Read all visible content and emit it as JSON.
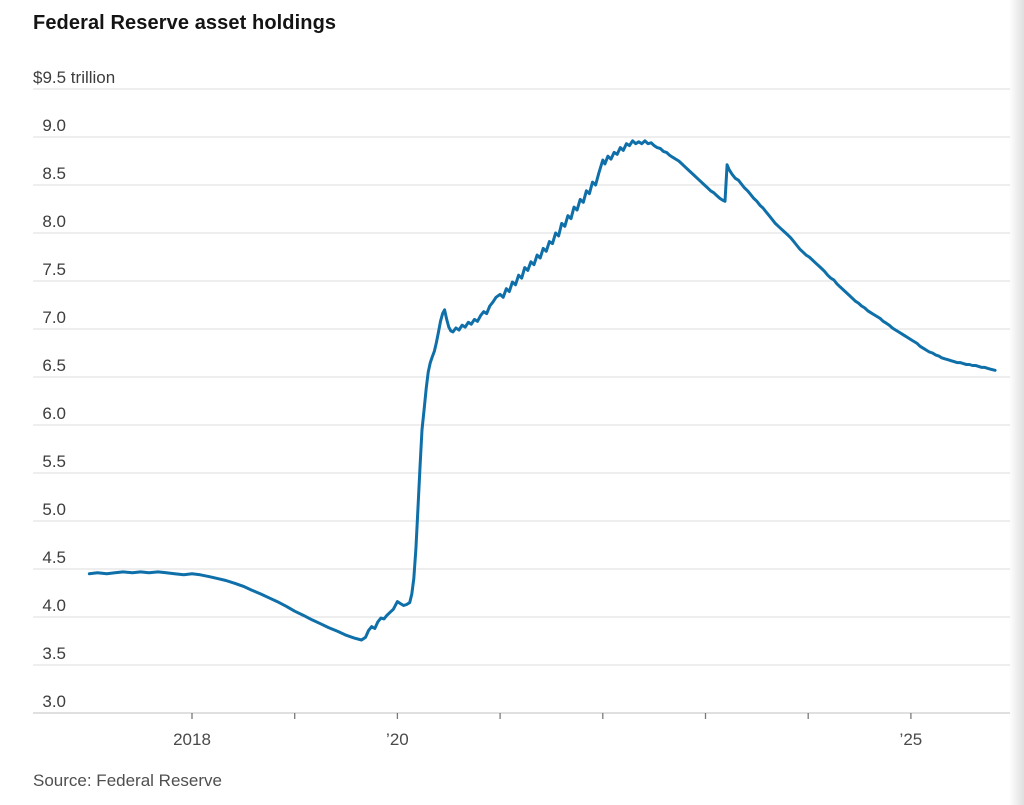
{
  "title": "Federal Reserve asset holdings",
  "source": "Source: Federal Reserve",
  "chart_data": {
    "type": "line",
    "title": "Federal Reserve asset holdings",
    "unit_label": "$9.5 trillion",
    "x_range": [
      2017.0,
      2025.83
    ],
    "y_range_drawn": [
      3.0,
      9.5
    ],
    "grid": "horizontal",
    "line_color": "#0f6fa9",
    "grid_color": "#dcdcdc",
    "axis_color": "#c2c2c2",
    "tick_color": "#7a7a7a",
    "y_ticks": [
      {
        "value": 9.5,
        "label": "$9.5 trillion"
      },
      {
        "value": 9.0,
        "label": "9.0"
      },
      {
        "value": 8.5,
        "label": "8.5"
      },
      {
        "value": 8.0,
        "label": "8.0"
      },
      {
        "value": 7.5,
        "label": "7.5"
      },
      {
        "value": 7.0,
        "label": "7.0"
      },
      {
        "value": 6.5,
        "label": "6.5"
      },
      {
        "value": 6.0,
        "label": "6.0"
      },
      {
        "value": 5.5,
        "label": "5.5"
      },
      {
        "value": 5.0,
        "label": "5.0"
      },
      {
        "value": 4.5,
        "label": "4.5"
      },
      {
        "value": 4.0,
        "label": "4.0"
      },
      {
        "value": 3.5,
        "label": "3.5"
      },
      {
        "value": 3.0,
        "label": "3.0"
      }
    ],
    "x_ticks": [
      {
        "year": 2018,
        "label": "2018"
      },
      {
        "year": 2019,
        "label": ""
      },
      {
        "year": 2020,
        "label": "’20"
      },
      {
        "year": 2021,
        "label": ""
      },
      {
        "year": 2022,
        "label": ""
      },
      {
        "year": 2023,
        "label": ""
      },
      {
        "year": 2024,
        "label": ""
      },
      {
        "year": 2025,
        "label": "’25"
      }
    ],
    "series": [
      {
        "points": [
          [
            2017.0,
            4.45
          ],
          [
            2017.08,
            4.46
          ],
          [
            2017.17,
            4.45
          ],
          [
            2017.25,
            4.46
          ],
          [
            2017.33,
            4.47
          ],
          [
            2017.42,
            4.46
          ],
          [
            2017.5,
            4.47
          ],
          [
            2017.58,
            4.46
          ],
          [
            2017.67,
            4.47
          ],
          [
            2017.75,
            4.46
          ],
          [
            2017.83,
            4.45
          ],
          [
            2017.92,
            4.44
          ],
          [
            2018.0,
            4.45
          ],
          [
            2018.08,
            4.44
          ],
          [
            2018.17,
            4.42
          ],
          [
            2018.25,
            4.4
          ],
          [
            2018.33,
            4.38
          ],
          [
            2018.42,
            4.35
          ],
          [
            2018.5,
            4.32
          ],
          [
            2018.58,
            4.28
          ],
          [
            2018.67,
            4.24
          ],
          [
            2018.75,
            4.2
          ],
          [
            2018.83,
            4.16
          ],
          [
            2018.92,
            4.11
          ],
          [
            2019.0,
            4.06
          ],
          [
            2019.08,
            4.02
          ],
          [
            2019.17,
            3.97
          ],
          [
            2019.25,
            3.93
          ],
          [
            2019.33,
            3.89
          ],
          [
            2019.42,
            3.85
          ],
          [
            2019.5,
            3.81
          ],
          [
            2019.58,
            3.78
          ],
          [
            2019.65,
            3.76
          ],
          [
            2019.69,
            3.79
          ],
          [
            2019.72,
            3.86
          ],
          [
            2019.75,
            3.9
          ],
          [
            2019.78,
            3.88
          ],
          [
            2019.81,
            3.95
          ],
          [
            2019.84,
            3.99
          ],
          [
            2019.87,
            3.98
          ],
          [
            2019.9,
            4.02
          ],
          [
            2019.93,
            4.05
          ],
          [
            2019.96,
            4.08
          ],
          [
            2020.0,
            4.16
          ],
          [
            2020.03,
            4.14
          ],
          [
            2020.06,
            4.12
          ],
          [
            2020.09,
            4.13
          ],
          [
            2020.12,
            4.15
          ],
          [
            2020.14,
            4.24
          ],
          [
            2020.16,
            4.4
          ],
          [
            2020.18,
            4.71
          ],
          [
            2020.2,
            5.12
          ],
          [
            2020.22,
            5.56
          ],
          [
            2020.24,
            5.95
          ],
          [
            2020.26,
            6.16
          ],
          [
            2020.28,
            6.38
          ],
          [
            2020.3,
            6.55
          ],
          [
            2020.32,
            6.65
          ],
          [
            2020.34,
            6.71
          ],
          [
            2020.36,
            6.77
          ],
          [
            2020.38,
            6.86
          ],
          [
            2020.4,
            6.97
          ],
          [
            2020.42,
            7.08
          ],
          [
            2020.44,
            7.16
          ],
          [
            2020.46,
            7.2
          ],
          [
            2020.48,
            7.1
          ],
          [
            2020.5,
            7.02
          ],
          [
            2020.52,
            6.98
          ],
          [
            2020.54,
            6.97
          ],
          [
            2020.57,
            7.01
          ],
          [
            2020.6,
            6.99
          ],
          [
            2020.63,
            7.04
          ],
          [
            2020.66,
            7.02
          ],
          [
            2020.69,
            7.07
          ],
          [
            2020.72,
            7.05
          ],
          [
            2020.75,
            7.1
          ],
          [
            2020.78,
            7.08
          ],
          [
            2020.81,
            7.14
          ],
          [
            2020.84,
            7.18
          ],
          [
            2020.87,
            7.16
          ],
          [
            2020.9,
            7.24
          ],
          [
            2020.93,
            7.28
          ],
          [
            2020.96,
            7.33
          ],
          [
            2021.0,
            7.36
          ],
          [
            2021.03,
            7.33
          ],
          [
            2021.06,
            7.42
          ],
          [
            2021.09,
            7.39
          ],
          [
            2021.12,
            7.49
          ],
          [
            2021.15,
            7.46
          ],
          [
            2021.18,
            7.56
          ],
          [
            2021.21,
            7.53
          ],
          [
            2021.24,
            7.64
          ],
          [
            2021.27,
            7.61
          ],
          [
            2021.3,
            7.7
          ],
          [
            2021.33,
            7.67
          ],
          [
            2021.36,
            7.77
          ],
          [
            2021.39,
            7.74
          ],
          [
            2021.42,
            7.84
          ],
          [
            2021.45,
            7.81
          ],
          [
            2021.48,
            7.91
          ],
          [
            2021.51,
            7.89
          ],
          [
            2021.54,
            8.0
          ],
          [
            2021.57,
            7.97
          ],
          [
            2021.6,
            8.1
          ],
          [
            2021.63,
            8.07
          ],
          [
            2021.66,
            8.18
          ],
          [
            2021.69,
            8.15
          ],
          [
            2021.72,
            8.27
          ],
          [
            2021.75,
            8.24
          ],
          [
            2021.78,
            8.35
          ],
          [
            2021.81,
            8.32
          ],
          [
            2021.84,
            8.44
          ],
          [
            2021.87,
            8.41
          ],
          [
            2021.9,
            8.53
          ],
          [
            2021.93,
            8.5
          ],
          [
            2021.96,
            8.62
          ],
          [
            2022.0,
            8.76
          ],
          [
            2022.02,
            8.72
          ],
          [
            2022.05,
            8.8
          ],
          [
            2022.08,
            8.77
          ],
          [
            2022.11,
            8.84
          ],
          [
            2022.14,
            8.82
          ],
          [
            2022.17,
            8.89
          ],
          [
            2022.2,
            8.86
          ],
          [
            2022.23,
            8.93
          ],
          [
            2022.26,
            8.91
          ],
          [
            2022.29,
            8.96
          ],
          [
            2022.32,
            8.93
          ],
          [
            2022.35,
            8.95
          ],
          [
            2022.38,
            8.93
          ],
          [
            2022.41,
            8.96
          ],
          [
            2022.44,
            8.93
          ],
          [
            2022.47,
            8.94
          ],
          [
            2022.5,
            8.91
          ],
          [
            2022.53,
            8.89
          ],
          [
            2022.56,
            8.88
          ],
          [
            2022.59,
            8.85
          ],
          [
            2022.62,
            8.84
          ],
          [
            2022.65,
            8.81
          ],
          [
            2022.68,
            8.79
          ],
          [
            2022.71,
            8.77
          ],
          [
            2022.74,
            8.75
          ],
          [
            2022.77,
            8.72
          ],
          [
            2022.8,
            8.69
          ],
          [
            2022.83,
            8.66
          ],
          [
            2022.86,
            8.63
          ],
          [
            2022.89,
            8.6
          ],
          [
            2022.92,
            8.57
          ],
          [
            2022.95,
            8.54
          ],
          [
            2022.98,
            8.51
          ],
          [
            2023.02,
            8.47
          ],
          [
            2023.05,
            8.44
          ],
          [
            2023.08,
            8.42
          ],
          [
            2023.11,
            8.39
          ],
          [
            2023.14,
            8.36
          ],
          [
            2023.17,
            8.34
          ],
          [
            2023.19,
            8.33
          ],
          [
            2023.21,
            8.71
          ],
          [
            2023.23,
            8.66
          ],
          [
            2023.26,
            8.61
          ],
          [
            2023.29,
            8.57
          ],
          [
            2023.32,
            8.55
          ],
          [
            2023.35,
            8.51
          ],
          [
            2023.38,
            8.47
          ],
          [
            2023.41,
            8.44
          ],
          [
            2023.44,
            8.4
          ],
          [
            2023.47,
            8.36
          ],
          [
            2023.5,
            8.33
          ],
          [
            2023.53,
            8.29
          ],
          [
            2023.56,
            8.26
          ],
          [
            2023.59,
            8.22
          ],
          [
            2023.62,
            8.18
          ],
          [
            2023.65,
            8.14
          ],
          [
            2023.68,
            8.1
          ],
          [
            2023.71,
            8.07
          ],
          [
            2023.74,
            8.04
          ],
          [
            2023.77,
            8.01
          ],
          [
            2023.8,
            7.98
          ],
          [
            2023.83,
            7.95
          ],
          [
            2023.86,
            7.91
          ],
          [
            2023.89,
            7.87
          ],
          [
            2023.92,
            7.83
          ],
          [
            2023.95,
            7.8
          ],
          [
            2023.98,
            7.77
          ],
          [
            2024.01,
            7.75
          ],
          [
            2024.04,
            7.72
          ],
          [
            2024.07,
            7.69
          ],
          [
            2024.1,
            7.66
          ],
          [
            2024.13,
            7.63
          ],
          [
            2024.16,
            7.6
          ],
          [
            2024.19,
            7.56
          ],
          [
            2024.22,
            7.53
          ],
          [
            2024.25,
            7.51
          ],
          [
            2024.28,
            7.47
          ],
          [
            2024.31,
            7.44
          ],
          [
            2024.34,
            7.41
          ],
          [
            2024.37,
            7.38
          ],
          [
            2024.4,
            7.35
          ],
          [
            2024.43,
            7.32
          ],
          [
            2024.46,
            7.29
          ],
          [
            2024.49,
            7.27
          ],
          [
            2024.52,
            7.24
          ],
          [
            2024.55,
            7.22
          ],
          [
            2024.58,
            7.19
          ],
          [
            2024.61,
            7.17
          ],
          [
            2024.64,
            7.15
          ],
          [
            2024.67,
            7.13
          ],
          [
            2024.7,
            7.11
          ],
          [
            2024.73,
            7.08
          ],
          [
            2024.76,
            7.06
          ],
          [
            2024.79,
            7.04
          ],
          [
            2024.82,
            7.01
          ],
          [
            2024.85,
            6.99
          ],
          [
            2024.88,
            6.97
          ],
          [
            2024.91,
            6.95
          ],
          [
            2024.94,
            6.93
          ],
          [
            2024.97,
            6.91
          ],
          [
            2025.0,
            6.89
          ],
          [
            2025.03,
            6.87
          ],
          [
            2025.06,
            6.85
          ],
          [
            2025.09,
            6.82
          ],
          [
            2025.12,
            6.8
          ],
          [
            2025.15,
            6.78
          ],
          [
            2025.18,
            6.76
          ],
          [
            2025.21,
            6.75
          ],
          [
            2025.24,
            6.73
          ],
          [
            2025.27,
            6.72
          ],
          [
            2025.3,
            6.7
          ],
          [
            2025.33,
            6.69
          ],
          [
            2025.36,
            6.68
          ],
          [
            2025.39,
            6.67
          ],
          [
            2025.42,
            6.66
          ],
          [
            2025.45,
            6.65
          ],
          [
            2025.48,
            6.65
          ],
          [
            2025.51,
            6.64
          ],
          [
            2025.54,
            6.63
          ],
          [
            2025.57,
            6.63
          ],
          [
            2025.6,
            6.62
          ],
          [
            2025.63,
            6.62
          ],
          [
            2025.66,
            6.61
          ],
          [
            2025.69,
            6.6
          ],
          [
            2025.72,
            6.6
          ],
          [
            2025.75,
            6.59
          ],
          [
            2025.78,
            6.58
          ],
          [
            2025.82,
            6.57
          ]
        ]
      }
    ]
  }
}
